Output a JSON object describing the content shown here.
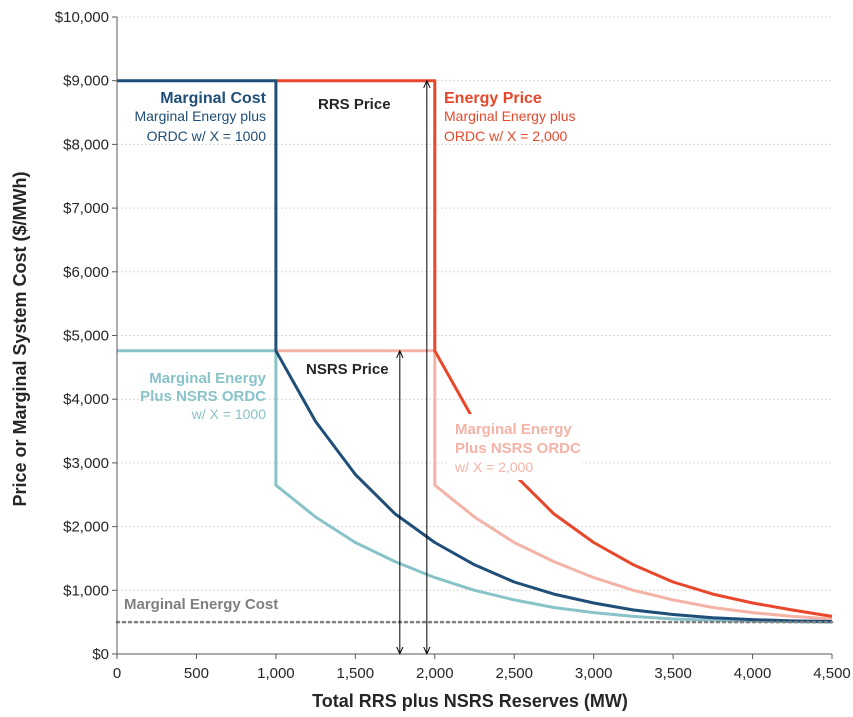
{
  "chart_data": {
    "type": "line",
    "xlabel": "Total RRS plus NSRS Reserves (MW)",
    "ylabel": "Price or Marginal System Cost ($/MWh)",
    "xlim": [
      0,
      4500
    ],
    "ylim": [
      0,
      10000
    ],
    "grid": true,
    "x_ticks": [
      "0",
      "500",
      "1,000",
      "1,500",
      "2,000",
      "2,500",
      "3,000",
      "3,500",
      "4,000",
      "4,500"
    ],
    "y_ticks": [
      "$0",
      "$1,000",
      "$2,000",
      "$3,000",
      "$4,000",
      "$5,000",
      "$6,000",
      "$7,000",
      "$8,000",
      "$9,000",
      "$10,000"
    ],
    "colors": {
      "marginal_cost": "#1f4e79",
      "energy_price": "#e8472b",
      "nsrs_1000": "#88c3c9",
      "nsrs_2000": "#f4b3a6",
      "energy_cost": "#7f7f7f",
      "arrow": "#000000"
    },
    "series": [
      {
        "key": "marginal_cost",
        "x": [
          0,
          1000,
          1000,
          1000,
          1250,
          1500,
          1750,
          2000,
          2250,
          2500,
          2750,
          3000,
          3250,
          3500,
          3750,
          4000,
          4250,
          4500
        ],
        "y": [
          9000,
          9000,
          8200,
          4760,
          3650,
          2820,
          2200,
          1750,
          1400,
          1130,
          940,
          800,
          690,
          620,
          570,
          540,
          520,
          510
        ]
      },
      {
        "key": "energy_price",
        "x": [
          1000,
          2000,
          2000,
          2000,
          2250,
          2500,
          2750,
          3000,
          3250,
          3500,
          3750,
          4000,
          4250,
          4500
        ],
        "y": [
          9000,
          9000,
          8200,
          4760,
          3650,
          2820,
          2200,
          1750,
          1400,
          1130,
          940,
          800,
          690,
          590
        ]
      },
      {
        "key": "nsrs_1000",
        "x": [
          0,
          1000,
          1000,
          1000,
          1250,
          1500,
          1750,
          2000,
          2250,
          2500,
          2750,
          3000,
          3250,
          3500,
          3750,
          4000,
          4250,
          4500
        ],
        "y": [
          4760,
          4760,
          4200,
          2650,
          2150,
          1750,
          1450,
          1200,
          1000,
          850,
          730,
          650,
          590,
          550,
          530,
          515,
          505,
          500
        ]
      },
      {
        "key": "nsrs_2000",
        "x": [
          1000,
          2000,
          2000,
          2000,
          2250,
          2500,
          2750,
          3000,
          3250,
          3500,
          3750,
          4000,
          4250,
          4500
        ],
        "y": [
          4760,
          4760,
          4200,
          2650,
          2150,
          1750,
          1450,
          1200,
          1000,
          850,
          730,
          650,
          590,
          550
        ]
      },
      {
        "key": "energy_cost",
        "x": [
          0,
          4500
        ],
        "y": [
          500,
          500
        ]
      }
    ],
    "arrows": [
      {
        "x": 1950,
        "y0": 0,
        "y1": 9000
      },
      {
        "x": 1780,
        "y0": 0,
        "y1": 4760
      }
    ],
    "annotations": {
      "marginal_cost_title": "Marginal Cost",
      "marginal_cost_line1": "Marginal Energy plus",
      "marginal_cost_line2": "ORDC w/ X = 1000",
      "rrs_price": "RRS Price",
      "energy_price_title": "Energy Price",
      "energy_price_line1": "Marginal Energy plus",
      "energy_price_line2": "ORDC w/ X = 2,000",
      "nsrs_price": "NSRS Price",
      "nsrs1000_line1": "Marginal Energy",
      "nsrs1000_line2": "Plus NSRS ORDC",
      "nsrs1000_line3": "w/ X = 1000",
      "nsrs2000_line1": "Marginal Energy",
      "nsrs2000_line2": "Plus NSRS ORDC",
      "nsrs2000_line3": "w/ X = 2,000",
      "energy_cost": "Marginal Energy Cost"
    }
  }
}
